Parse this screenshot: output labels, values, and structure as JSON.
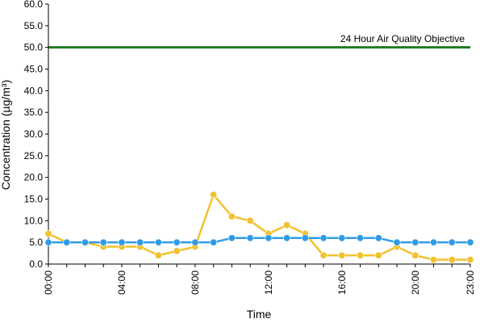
{
  "chart_data": {
    "type": "line",
    "xlabel": "Time",
    "ylabel": "Concentration (µg/m³)",
    "x": [
      "00:00",
      "01:00",
      "02:00",
      "03:00",
      "04:00",
      "05:00",
      "06:00",
      "07:00",
      "08:00",
      "09:00",
      "10:00",
      "11:00",
      "12:00",
      "13:00",
      "14:00",
      "15:00",
      "16:00",
      "17:00",
      "18:00",
      "19:00",
      "20:00",
      "21:00",
      "22:00",
      "23:00"
    ],
    "x_tick_labels": [
      "00:00",
      "04:00",
      "08:00",
      "12:00",
      "16:00",
      "20:00",
      "23:00"
    ],
    "y_tick_labels": [
      "0.0",
      "5.0",
      "10.0",
      "15.0",
      "20.0",
      "25.0",
      "30.0",
      "35.0",
      "40.0",
      "45.0",
      "50.0",
      "55.0",
      "60.0"
    ],
    "ylim": [
      0,
      60
    ],
    "grid": false,
    "series": [
      {
        "color": "#f2c12e",
        "values": [
          7,
          5,
          5,
          4,
          4,
          4,
          2,
          3,
          4,
          16,
          11,
          10,
          7,
          9,
          7,
          2,
          2,
          2,
          2,
          4,
          2,
          1,
          1,
          1
        ]
      },
      {
        "color": "#2f9be8",
        "values": [
          5,
          5,
          5,
          5,
          5,
          5,
          5,
          5,
          5,
          5,
          6,
          6,
          6,
          6,
          6,
          6,
          6,
          6,
          6,
          5,
          5,
          5,
          5,
          5
        ]
      }
    ],
    "reference_line": {
      "value": 50,
      "label": "24 Hour Air Quality Objective",
      "color": "#1e7d1e"
    }
  }
}
